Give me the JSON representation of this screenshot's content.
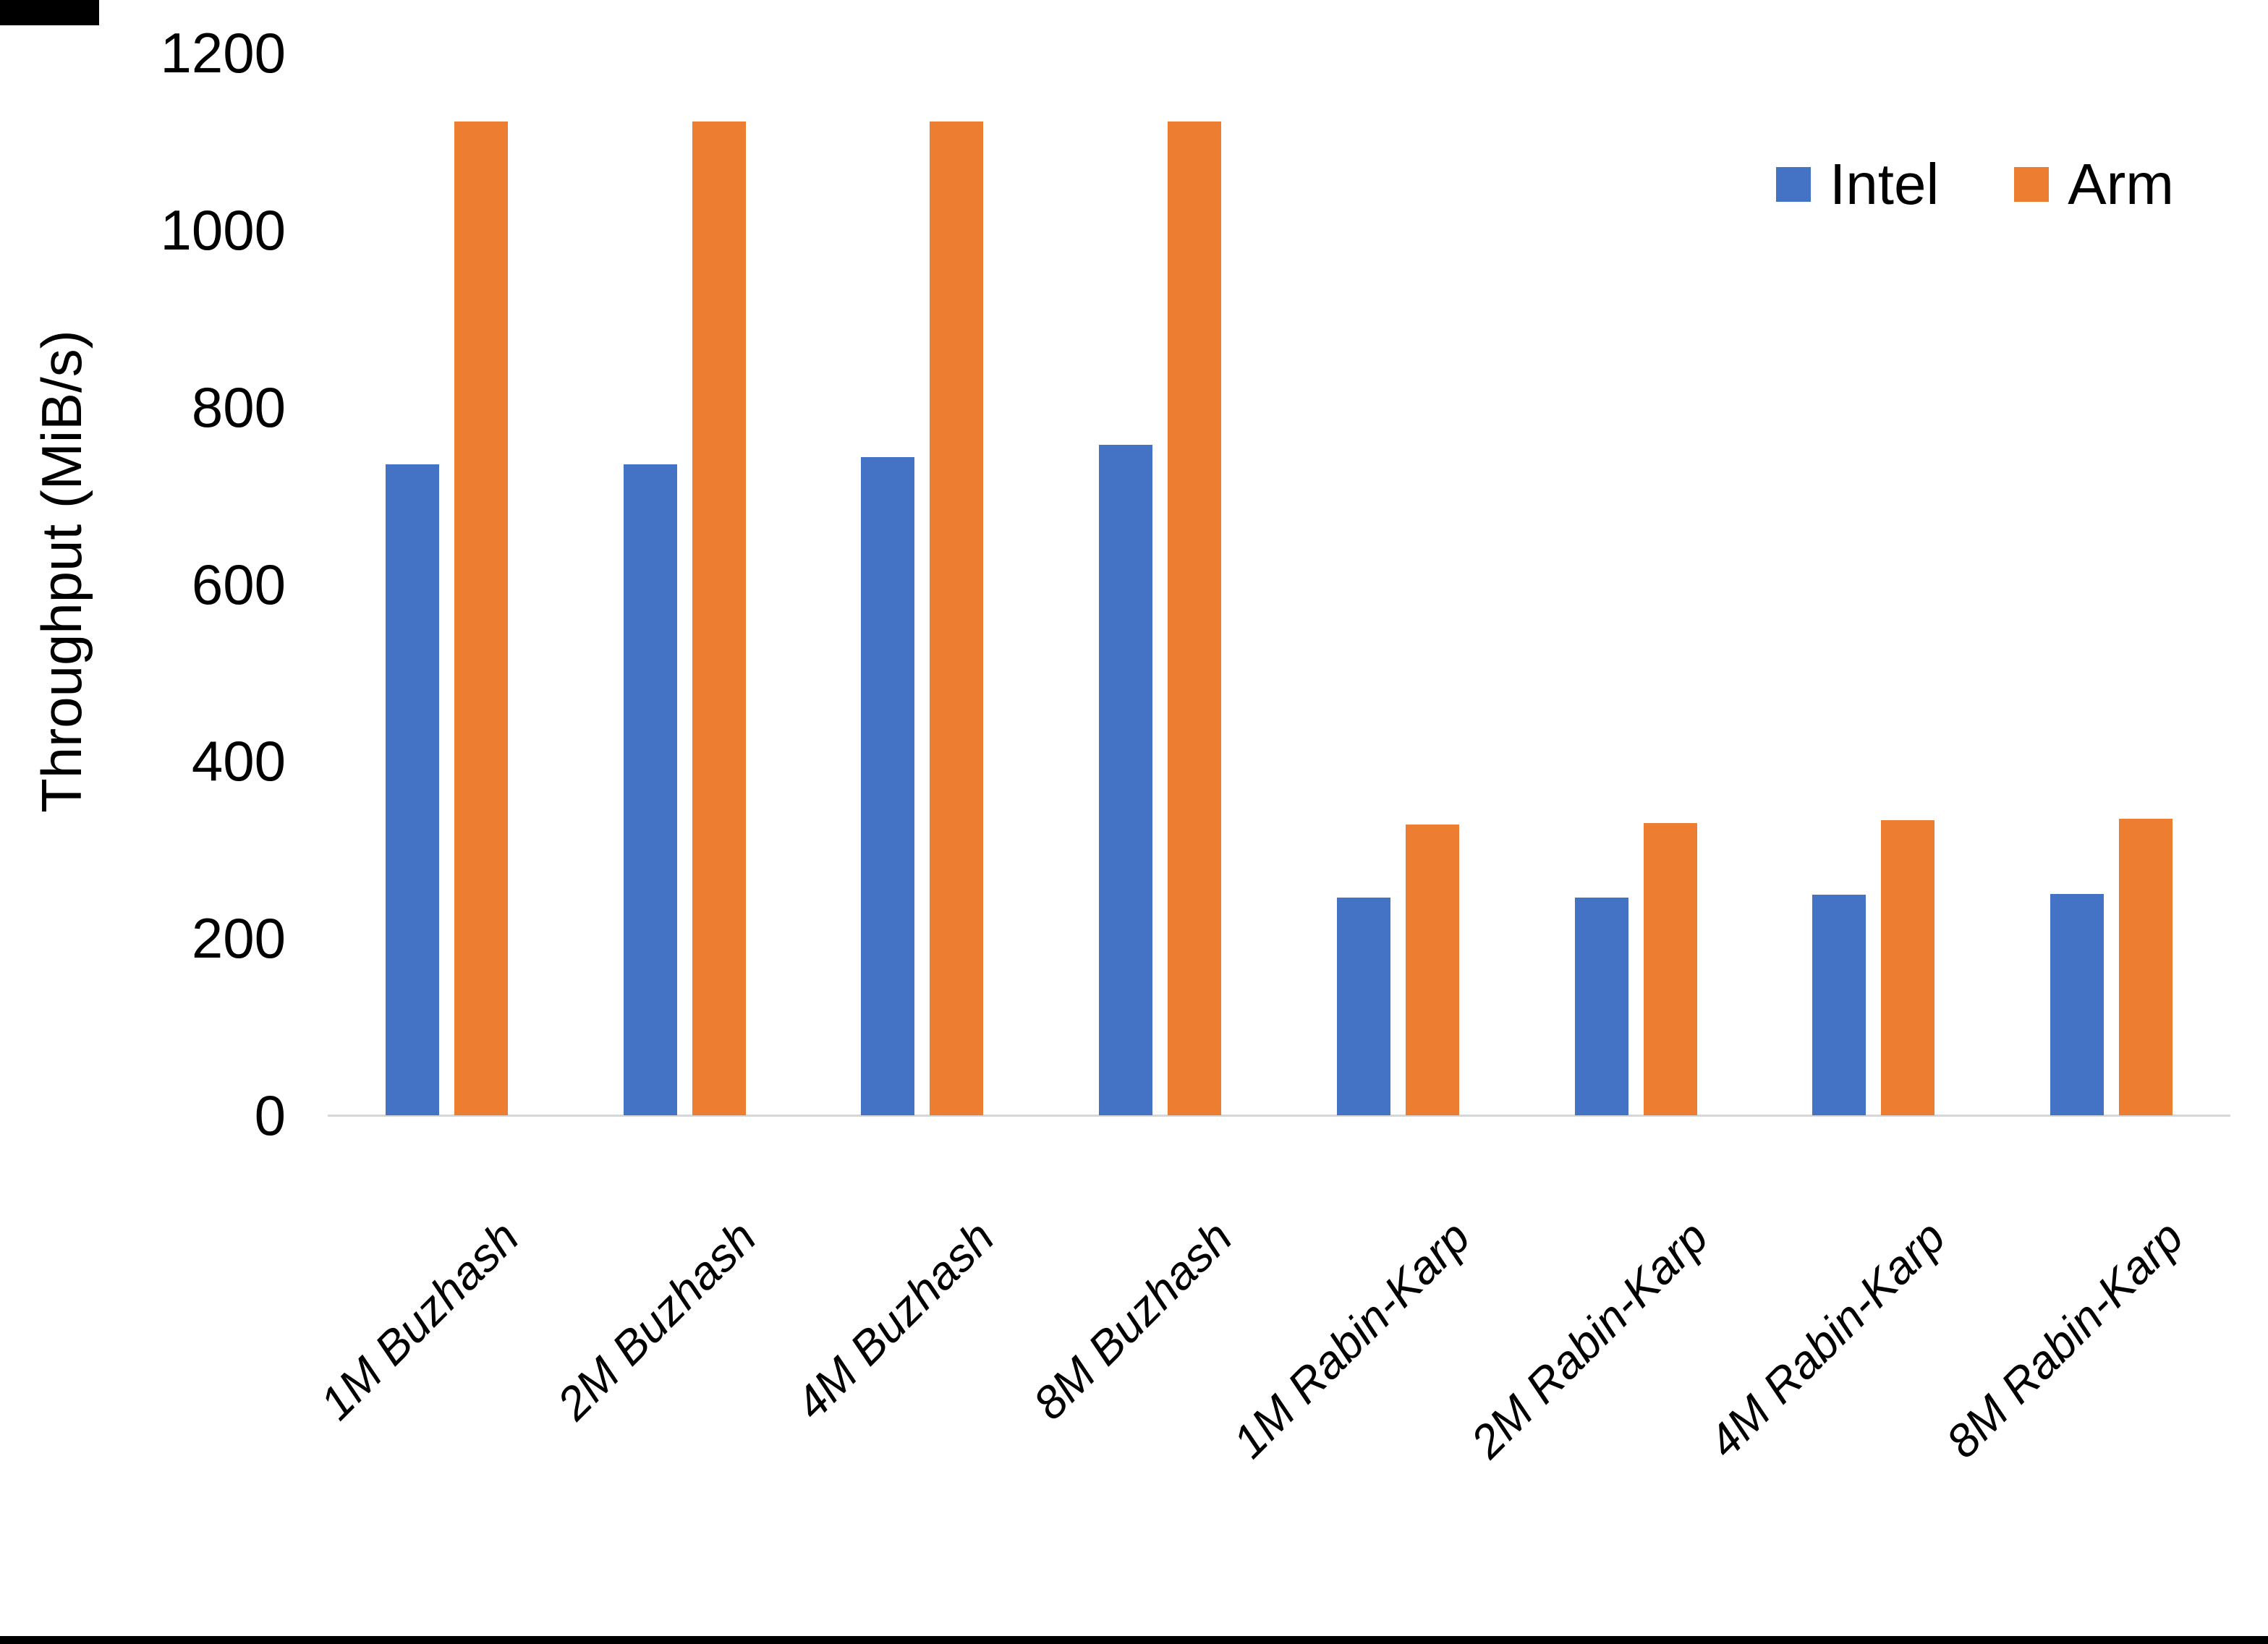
{
  "chart_data": {
    "type": "bar",
    "title": "",
    "ylabel": "Throughput (MiB/s)",
    "xlabel": "",
    "categories": [
      "1M Buzhash",
      "2M Buzhash",
      "4M Buzhash",
      "8M Buzhash",
      "1M Rabin-Karp",
      "2M Rabin-Karp",
      "4M Rabin-Karp",
      "8M Rabin-Karp"
    ],
    "series": [
      {
        "name": "Intel",
        "color": "#4472C4",
        "values": [
          735,
          735,
          743,
          757,
          246,
          246,
          249,
          250
        ]
      },
      {
        "name": "Arm",
        "color": "#ED7D31",
        "values": [
          1122,
          1122,
          1122,
          1122,
          328,
          330,
          333,
          335
        ]
      }
    ],
    "y_ticks": [
      0,
      200,
      400,
      600,
      800,
      1000,
      1200
    ],
    "ylim": [
      0,
      1200
    ],
    "grid": false,
    "legend_position": "top-right",
    "legend": [
      "Intel",
      "Arm"
    ],
    "axis_line_color": "#D6D6D6",
    "text_color": "#000000",
    "background": "#FFFFFF"
  }
}
